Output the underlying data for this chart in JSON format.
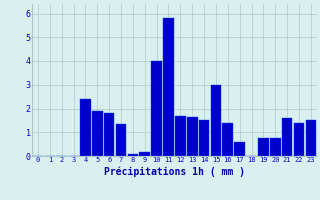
{
  "hours": [
    0,
    1,
    2,
    3,
    4,
    5,
    6,
    7,
    8,
    9,
    10,
    11,
    12,
    13,
    14,
    15,
    16,
    17,
    18,
    19,
    20,
    21,
    22,
    23
  ],
  "values": [
    0,
    0,
    0,
    0,
    2.4,
    1.9,
    1.8,
    1.35,
    0.1,
    0.15,
    4.0,
    5.8,
    1.7,
    1.65,
    1.5,
    3.0,
    1.4,
    0.6,
    0,
    0.75,
    0.75,
    1.6,
    1.4,
    1.5
  ],
  "bar_color": "#0000cc",
  "bar_edge_color": "#0044ee",
  "background_color": "#daf0f0",
  "grid_color": "#aec8c8",
  "xlabel": "Précipitations 1h ( mm )",
  "xlabel_color": "#0000aa",
  "tick_color": "#0000cc",
  "ylim": [
    0,
    6.4
  ],
  "yticks": [
    0,
    1,
    2,
    3,
    4,
    5,
    6
  ],
  "fig_bg": "#daf0f0"
}
